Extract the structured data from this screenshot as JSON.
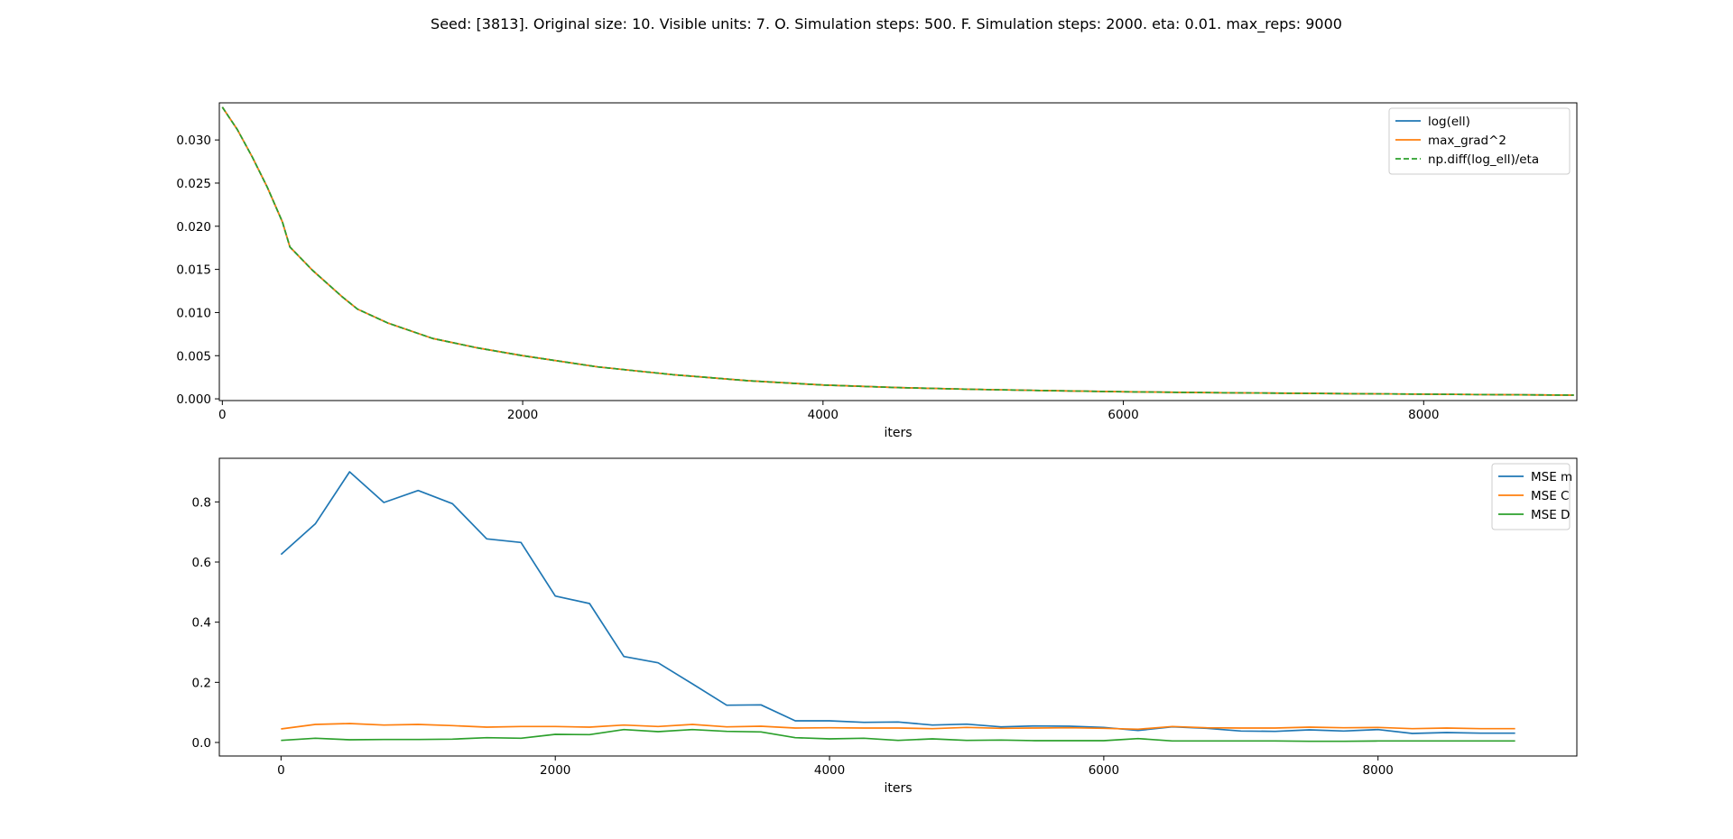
{
  "figure_title": "Seed: [3813]. Original size: 10. Visible units: 7. O. Simulation steps: 500. F. Simulation steps: 2000. eta: 0.01. max_reps: 9000",
  "chart_data": [
    {
      "type": "line",
      "title": "",
      "xlabel": "iters",
      "ylabel": "",
      "xlim": [
        -20,
        9020
      ],
      "ylim": [
        -0.0002,
        0.0343
      ],
      "xticks": [
        0,
        2000,
        4000,
        6000,
        8000
      ],
      "xtick_labels": [
        "0",
        "2000",
        "4000",
        "6000",
        "8000"
      ],
      "yticks": [
        0.0,
        0.005,
        0.01,
        0.015,
        0.02,
        0.025,
        0.03
      ],
      "ytick_labels": [
        "0.000",
        "0.005",
        "0.010",
        "0.015",
        "0.020",
        "0.025",
        "0.030"
      ],
      "grid": false,
      "legend_position": "upper right",
      "x": [
        0,
        100,
        200,
        300,
        400,
        450,
        600,
        800,
        900,
        1100,
        1400,
        1700,
        2000,
        2500,
        3000,
        3500,
        4000,
        4500,
        5000,
        5500,
        6000,
        6500,
        7000,
        7500,
        8000,
        8500,
        9000
      ],
      "series": [
        {
          "name": "log(ell)",
          "color": "#1f77b4",
          "dash": "solid",
          "values": [
            0.0338,
            0.0312,
            0.028,
            0.0245,
            0.0205,
            0.0176,
            0.0149,
            0.0118,
            0.0104,
            0.0088,
            0.007,
            0.0059,
            0.005,
            0.0037,
            0.0028,
            0.0021,
            0.0016,
            0.0013,
            0.0011,
            0.00095,
            0.00082,
            0.00073,
            0.00066,
            0.0006,
            0.00054,
            0.00048,
            0.00043
          ]
        },
        {
          "name": "max_grad^2",
          "color": "#ff7f0e",
          "dash": "solid",
          "values": [
            0.0338,
            0.0312,
            0.028,
            0.0245,
            0.0205,
            0.0176,
            0.0149,
            0.0118,
            0.0104,
            0.0088,
            0.007,
            0.0059,
            0.005,
            0.0037,
            0.0028,
            0.0021,
            0.0016,
            0.0013,
            0.0011,
            0.00095,
            0.00082,
            0.00073,
            0.00066,
            0.0006,
            0.00054,
            0.00048,
            0.00043
          ]
        },
        {
          "name": "np.diff(log_ell)/eta",
          "color": "#2ca02c",
          "dash": "dashed",
          "values": [
            0.0338,
            0.0312,
            0.028,
            0.0245,
            0.0205,
            0.0176,
            0.0149,
            0.0118,
            0.0104,
            0.0088,
            0.007,
            0.0059,
            0.005,
            0.0037,
            0.0028,
            0.0021,
            0.0016,
            0.0013,
            0.0011,
            0.00095,
            0.00082,
            0.00073,
            0.00066,
            0.0006,
            0.00054,
            0.00048,
            0.00043
          ]
        }
      ]
    },
    {
      "type": "line",
      "title": "",
      "xlabel": "iters",
      "ylabel": "",
      "xlim": [
        -450,
        9450
      ],
      "ylim": [
        -0.045,
        0.945
      ],
      "xticks": [
        0,
        2000,
        4000,
        6000,
        8000
      ],
      "xtick_labels": [
        "0",
        "2000",
        "4000",
        "6000",
        "8000"
      ],
      "yticks": [
        0.0,
        0.2,
        0.4,
        0.6,
        0.8
      ],
      "ytick_labels": [
        "0.0",
        "0.2",
        "0.4",
        "0.6",
        "0.8"
      ],
      "grid": false,
      "legend_position": "upper right",
      "x": [
        0,
        250,
        500,
        750,
        1000,
        1250,
        1500,
        1750,
        2000,
        2250,
        2500,
        2750,
        3000,
        3250,
        3500,
        3750,
        4000,
        4250,
        4500,
        4750,
        5000,
        5250,
        5500,
        5750,
        6000,
        6250,
        6500,
        6750,
        7000,
        7250,
        7500,
        7750,
        8000,
        8250,
        8500,
        8750,
        9000
      ],
      "series": [
        {
          "name": "MSE m",
          "color": "#1f77b4",
          "values": [
            0.625,
            0.727,
            0.9,
            0.798,
            0.838,
            0.794,
            0.677,
            0.665,
            0.487,
            0.462,
            0.286,
            0.265,
            0.195,
            0.124,
            0.125,
            0.072,
            0.072,
            0.067,
            0.068,
            0.058,
            0.061,
            0.052,
            0.055,
            0.054,
            0.05,
            0.04,
            0.052,
            0.047,
            0.038,
            0.037,
            0.042,
            0.038,
            0.043,
            0.03,
            0.033,
            0.031,
            0.031
          ]
        },
        {
          "name": "MSE C",
          "color": "#ff7f0e",
          "values": [
            0.045,
            0.06,
            0.063,
            0.058,
            0.06,
            0.056,
            0.051,
            0.053,
            0.053,
            0.051,
            0.058,
            0.053,
            0.06,
            0.052,
            0.054,
            0.048,
            0.049,
            0.048,
            0.048,
            0.046,
            0.05,
            0.047,
            0.048,
            0.049,
            0.047,
            0.044,
            0.053,
            0.049,
            0.048,
            0.048,
            0.051,
            0.049,
            0.05,
            0.046,
            0.048,
            0.046,
            0.046
          ]
        },
        {
          "name": "MSE D",
          "color": "#2ca02c",
          "values": [
            0.007,
            0.014,
            0.009,
            0.01,
            0.01,
            0.011,
            0.016,
            0.014,
            0.027,
            0.026,
            0.043,
            0.036,
            0.043,
            0.037,
            0.035,
            0.016,
            0.012,
            0.014,
            0.007,
            0.012,
            0.007,
            0.008,
            0.006,
            0.006,
            0.006,
            0.013,
            0.005,
            0.005,
            0.005,
            0.005,
            0.004,
            0.004,
            0.005,
            0.005,
            0.005,
            0.005,
            0.005
          ]
        }
      ]
    }
  ]
}
